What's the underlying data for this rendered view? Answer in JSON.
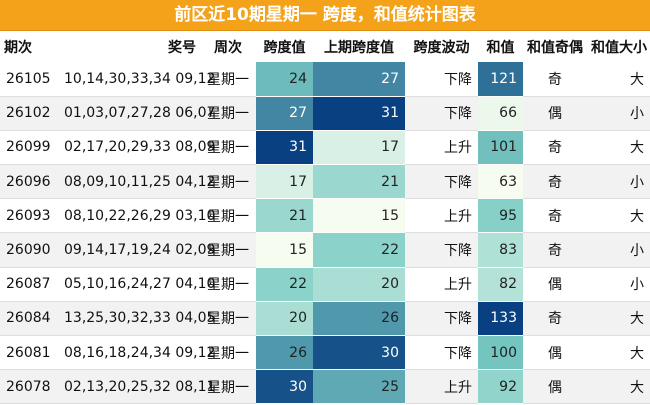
{
  "title": "前区近10期星期一 跨度，和值统计图表",
  "headers": [
    "期次",
    "奖号",
    "周次",
    "跨度值",
    "上期跨度值",
    "跨度波动",
    "和值",
    "和值奇偶",
    "和值大小"
  ],
  "rows": [
    {
      "qi": "26105",
      "hao": "10,14,30,33,34 09,12",
      "zhou": "星期一",
      "kua": 24,
      "prev": 27,
      "bo": "下降",
      "he": 121,
      "jo": "奇",
      "dx": "大"
    },
    {
      "qi": "26102",
      "hao": "01,03,07,27,28 06,07",
      "zhou": "星期一",
      "kua": 27,
      "prev": 31,
      "bo": "下降",
      "he": 66,
      "jo": "偶",
      "dx": "小"
    },
    {
      "qi": "26099",
      "hao": "02,17,20,29,33 08,09",
      "zhou": "星期一",
      "kua": 31,
      "prev": 17,
      "bo": "上升",
      "he": 101,
      "jo": "奇",
      "dx": "大"
    },
    {
      "qi": "26096",
      "hao": "08,09,10,11,25 04,12",
      "zhou": "星期一",
      "kua": 17,
      "prev": 21,
      "bo": "下降",
      "he": 63,
      "jo": "奇",
      "dx": "小"
    },
    {
      "qi": "26093",
      "hao": "08,10,22,26,29 03,10",
      "zhou": "星期一",
      "kua": 21,
      "prev": 15,
      "bo": "上升",
      "he": 95,
      "jo": "奇",
      "dx": "大"
    },
    {
      "qi": "26090",
      "hao": "09,14,17,19,24 02,09",
      "zhou": "星期一",
      "kua": 15,
      "prev": 22,
      "bo": "下降",
      "he": 83,
      "jo": "奇",
      "dx": "小"
    },
    {
      "qi": "26087",
      "hao": "05,10,16,24,27 04,10",
      "zhou": "星期一",
      "kua": 22,
      "prev": 20,
      "bo": "上升",
      "he": 82,
      "jo": "偶",
      "dx": "小"
    },
    {
      "qi": "26084",
      "hao": "13,25,30,32,33 04,05",
      "zhou": "星期一",
      "kua": 20,
      "prev": 26,
      "bo": "下降",
      "he": 133,
      "jo": "奇",
      "dx": "大"
    },
    {
      "qi": "26081",
      "hao": "08,16,18,24,34 09,12",
      "zhou": "星期一",
      "kua": 26,
      "prev": 30,
      "bo": "下降",
      "he": 100,
      "jo": "偶",
      "dx": "大"
    },
    {
      "qi": "26078",
      "hao": "02,13,20,25,32 08,11",
      "zhou": "星期一",
      "kua": 30,
      "prev": 25,
      "bo": "上升",
      "he": 92,
      "jo": "偶",
      "dx": "大"
    }
  ],
  "colors": {
    "title_bg": "#f5a21b",
    "heat_low": "#f7fcf0",
    "heat_mid": "#7bccc4",
    "heat_high": "#084081"
  }
}
